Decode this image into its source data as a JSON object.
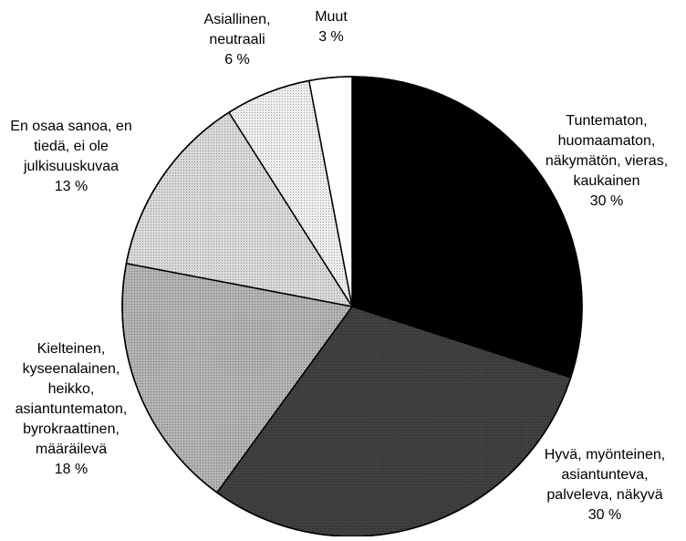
{
  "chart_data": {
    "type": "pie",
    "title": "",
    "start_angle_deg": 0,
    "direction": "clockwise",
    "border_color": "#000000",
    "slices": [
      {
        "id": "tuntematon",
        "label_lines": [
          "Tuntematon,",
          "huomaamaton,",
          "näkymätön, vieras,",
          "kaukainen",
          "30 %"
        ],
        "value": 30,
        "color": "#000000"
      },
      {
        "id": "hyva",
        "label_lines": [
          "Hyvä, myönteinen,",
          "asiantunteva,",
          "palveleva, näkyvä",
          "30 %"
        ],
        "value": 30,
        "color": "#404040",
        "pattern": "dots"
      },
      {
        "id": "kielteinen",
        "label_lines": [
          "Kielteinen,",
          "kyseenalainen,",
          "heikko,",
          "asiantuntematon,",
          "byrokraattinen,",
          "määräilevä",
          "18 %"
        ],
        "value": 18,
        "color": "#b3b3b3",
        "pattern": "dots"
      },
      {
        "id": "en-osaa",
        "label_lines": [
          "En osaa sanoa, en",
          "tiedä, ei ole",
          "julkisuuskuvaa",
          "13 %"
        ],
        "value": 13,
        "color": "#d9d9d9",
        "pattern": "dots"
      },
      {
        "id": "asiallinen",
        "label_lines": [
          "Asiallinen,",
          "neutraali",
          "6 %"
        ],
        "value": 6,
        "color": "#eeeeee",
        "pattern": "dots"
      },
      {
        "id": "muut",
        "label_lines": [
          "Muut",
          "3 %"
        ],
        "value": 3,
        "color": "#ffffff"
      }
    ]
  }
}
